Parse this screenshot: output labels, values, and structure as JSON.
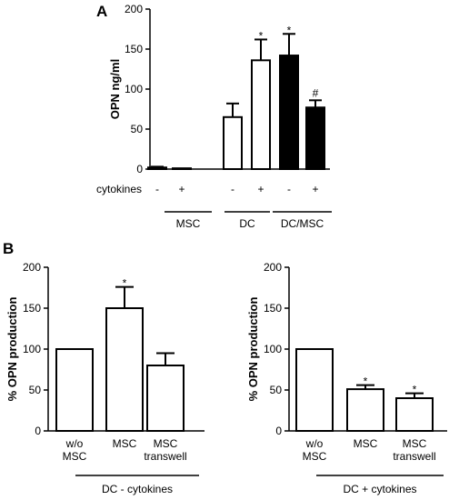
{
  "chart_data": [
    {
      "panel": "A",
      "type": "bar",
      "ylabel": "OPN ng/ml",
      "ylim": [
        0,
        200
      ],
      "yticks": [
        "0",
        "50",
        "100",
        "150",
        "200"
      ],
      "row_label": "cytokines",
      "cytokine_marks": [
        "-",
        "+",
        "-",
        "+",
        "-",
        "+"
      ],
      "groups": [
        "MSC",
        "DC",
        "DC/MSC"
      ],
      "values": [
        2,
        1,
        65,
        136,
        142,
        77
      ],
      "errors": [
        1,
        0,
        17,
        26,
        27,
        9
      ],
      "fills": [
        "white",
        "white",
        "white",
        "white",
        "black",
        "black"
      ],
      "annotations": [
        "",
        "",
        "",
        "*",
        "*",
        "#"
      ]
    },
    {
      "panel": "B",
      "type": "bar",
      "ylabel": "% OPN production",
      "ylim": [
        0,
        200
      ],
      "yticks": [
        "0",
        "50",
        "100",
        "150",
        "200"
      ],
      "categories": [
        "w/o\nMSC",
        "MSC",
        "MSC\ntranswell"
      ],
      "values": [
        100,
        150,
        80
      ],
      "errors": [
        0,
        26,
        15
      ],
      "annotations": [
        "",
        "*",
        ""
      ],
      "group_label": "DC - cytokines"
    },
    {
      "panel": "",
      "type": "bar",
      "ylabel": "% OPN production",
      "ylim": [
        0,
        200
      ],
      "yticks": [
        "0",
        "50",
        "100",
        "150",
        "200"
      ],
      "categories": [
        "w/o\nMSC",
        "MSC",
        "MSC\ntranswell"
      ],
      "values": [
        100,
        51,
        40
      ],
      "errors": [
        0,
        5,
        6
      ],
      "annotations": [
        "",
        "*",
        "*"
      ],
      "group_label": "DC + cytokines"
    }
  ]
}
